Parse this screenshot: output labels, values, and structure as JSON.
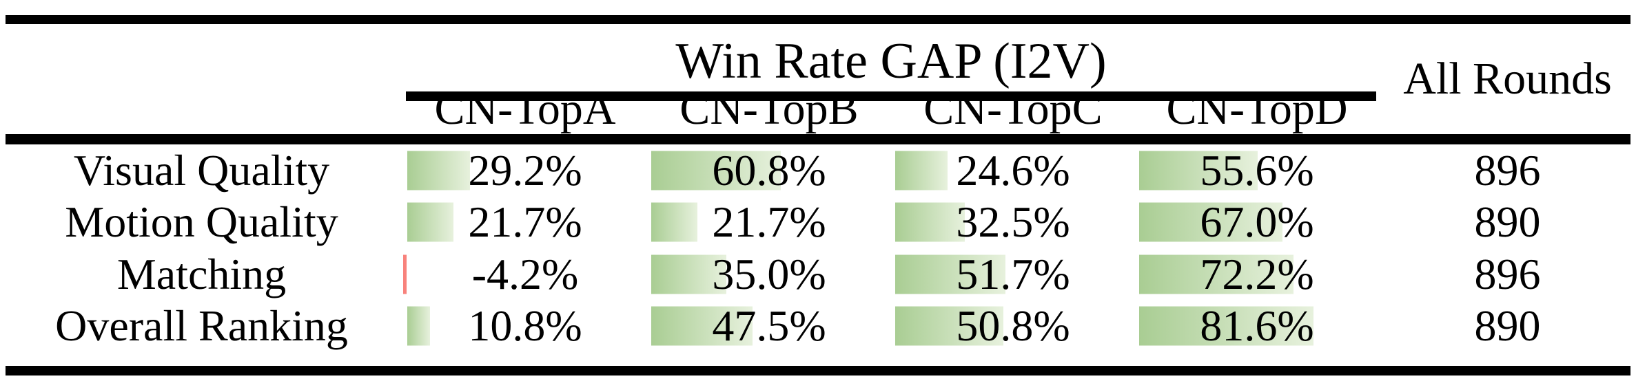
{
  "table": {
    "title": "Win Rate GAP (I2V)",
    "all_rounds_label": "All Rounds",
    "column_headers": [
      "CN-TopA",
      "CN-TopB",
      "CN-TopC",
      "CN-TopD"
    ],
    "rows": [
      {
        "label": "Visual Quality",
        "cells": [
          {
            "display": "29.2%",
            "value": 29.2
          },
          {
            "display": "60.8%",
            "value": 60.8
          },
          {
            "display": "24.6%",
            "value": 24.6
          },
          {
            "display": "55.6%",
            "value": 55.6
          }
        ],
        "all_rounds": "896"
      },
      {
        "label": "Motion Quality",
        "cells": [
          {
            "display": "21.7%",
            "value": 21.7
          },
          {
            "display": "21.7%",
            "value": 21.7
          },
          {
            "display": "32.5%",
            "value": 32.5
          },
          {
            "display": "67.0%",
            "value": 67.0
          }
        ],
        "all_rounds": "890"
      },
      {
        "label": "Matching",
        "cells": [
          {
            "display": "-4.2%",
            "value": -4.2
          },
          {
            "display": "35.0%",
            "value": 35.0
          },
          {
            "display": "51.7%",
            "value": 51.7
          },
          {
            "display": "72.2%",
            "value": 72.2
          }
        ],
        "all_rounds": "896"
      },
      {
        "label": "Overall Ranking",
        "cells": [
          {
            "display": "10.8%",
            "value": 10.8
          },
          {
            "display": "47.5%",
            "value": 47.5
          },
          {
            "display": "50.8%",
            "value": 50.8
          },
          {
            "display": "81.6%",
            "value": 81.6
          }
        ],
        "all_rounds": "890"
      }
    ],
    "colors": {
      "bar_green_left": "#a9cd93",
      "bar_green_right": "#e7f1dd",
      "bar_negative_red": "#f8827c",
      "rule_black": "#000000"
    }
  },
  "chart_data": {
    "type": "table",
    "title": "Win Rate GAP (I2V)",
    "columns": [
      "",
      "CN-TopA",
      "CN-TopB",
      "CN-TopC",
      "CN-TopD",
      "All Rounds"
    ],
    "rows": [
      [
        "Visual Quality",
        "29.2%",
        "60.8%",
        "24.6%",
        "55.6%",
        "896"
      ],
      [
        "Motion Quality",
        "21.7%",
        "21.7%",
        "32.5%",
        "67.0%",
        "890"
      ],
      [
        "Matching",
        "-4.2%",
        "35.0%",
        "51.7%",
        "72.2%",
        "896"
      ],
      [
        "Overall Ranking",
        "10.8%",
        "47.5%",
        "50.8%",
        "81.6%",
        "890"
      ]
    ],
    "layout_hints": {
      "data_bars": "green gradient bars anchored left, length proportional to percentage on a 0-100 scale; negative values shown as thin red bar",
      "series_columns": [
        "CN-TopA",
        "CN-TopB",
        "CN-TopC",
        "CN-TopD"
      ]
    }
  }
}
